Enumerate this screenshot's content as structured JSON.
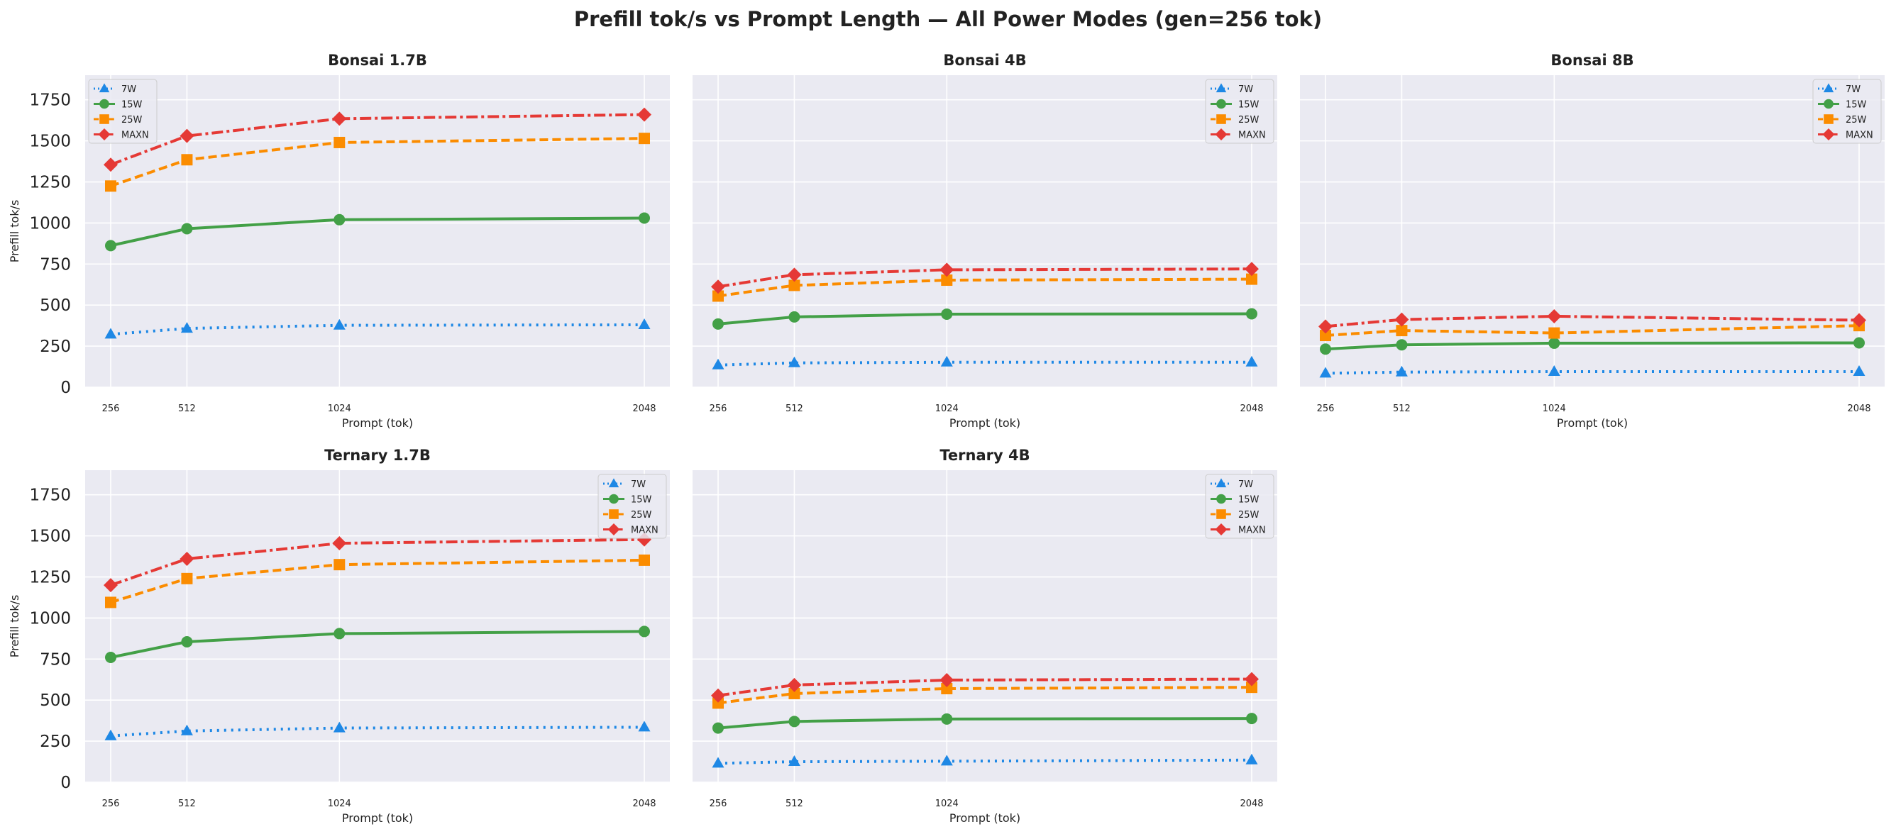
{
  "title": "Prefill tok/s vs Prompt Length — All Power Modes (gen=256 tok)",
  "colors": {
    "7W": "#1e88e5",
    "15W": "#43a047",
    "25W": "#fb8c00",
    "MAXN": "#e53935"
  },
  "chart_data": [
    {
      "type": "line",
      "title": "Bonsai 1.7B",
      "xlabel": "Prompt (tok)",
      "ylabel": "Prefill tok/s",
      "x": [
        256,
        512,
        1024,
        2048
      ],
      "ylim": [
        0,
        1900
      ],
      "legend": "upper-left",
      "grid": true,
      "series": [
        {
          "name": "7W",
          "values": [
            322,
            358,
            377,
            380
          ]
        },
        {
          "name": "15W",
          "values": [
            862,
            965,
            1020,
            1030
          ]
        },
        {
          "name": "25W",
          "values": [
            1225,
            1385,
            1490,
            1515
          ]
        },
        {
          "name": "MAXN",
          "values": [
            1355,
            1530,
            1635,
            1660
          ]
        }
      ]
    },
    {
      "type": "line",
      "title": "Bonsai 4B",
      "xlabel": "Prompt (tok)",
      "ylabel": "",
      "x": [
        256,
        512,
        1024,
        2048
      ],
      "ylim": [
        0,
        1900
      ],
      "legend": "upper-right",
      "grid": true,
      "series": [
        {
          "name": "7W",
          "values": [
            135,
            148,
            152,
            152
          ]
        },
        {
          "name": "15W",
          "values": [
            385,
            428,
            445,
            447
          ]
        },
        {
          "name": "25W",
          "values": [
            555,
            620,
            652,
            658
          ]
        },
        {
          "name": "MAXN",
          "values": [
            612,
            685,
            715,
            720
          ]
        }
      ]
    },
    {
      "type": "line",
      "title": "Bonsai 8B",
      "xlabel": "Prompt (tok)",
      "ylabel": "",
      "x": [
        256,
        512,
        1024,
        2048
      ],
      "ylim": [
        0,
        1900
      ],
      "legend": "upper-right",
      "grid": true,
      "series": [
        {
          "name": "7W",
          "values": [
            85,
            92,
            95,
            95
          ]
        },
        {
          "name": "15W",
          "values": [
            232,
            258,
            268,
            270
          ]
        },
        {
          "name": "25W",
          "values": [
            315,
            345,
            330,
            375
          ]
        },
        {
          "name": "MAXN",
          "values": [
            370,
            412,
            432,
            408
          ]
        }
      ]
    },
    {
      "type": "line",
      "title": "Ternary 1.7B",
      "xlabel": "Prompt (tok)",
      "ylabel": "Prefill tok/s",
      "x": [
        256,
        512,
        1024,
        2048
      ],
      "ylim": [
        0,
        1900
      ],
      "legend": "upper-right",
      "grid": true,
      "series": [
        {
          "name": "7W",
          "values": [
            282,
            312,
            330,
            335
          ]
        },
        {
          "name": "15W",
          "values": [
            760,
            855,
            905,
            918
          ]
        },
        {
          "name": "25W",
          "values": [
            1095,
            1240,
            1325,
            1352
          ]
        },
        {
          "name": "MAXN",
          "values": [
            1200,
            1360,
            1455,
            1478
          ]
        }
      ]
    },
    {
      "type": "line",
      "title": "Ternary 4B",
      "xlabel": "Prompt (tok)",
      "ylabel": "",
      "x": [
        256,
        512,
        1024,
        2048
      ],
      "ylim": [
        0,
        1900
      ],
      "legend": "upper-right",
      "grid": true,
      "series": [
        {
          "name": "7W",
          "values": [
            115,
            125,
            128,
            135
          ]
        },
        {
          "name": "15W",
          "values": [
            330,
            370,
            385,
            388
          ]
        },
        {
          "name": "25W",
          "values": [
            482,
            540,
            570,
            578
          ]
        },
        {
          "name": "MAXN",
          "values": [
            528,
            592,
            622,
            628
          ]
        }
      ]
    }
  ]
}
